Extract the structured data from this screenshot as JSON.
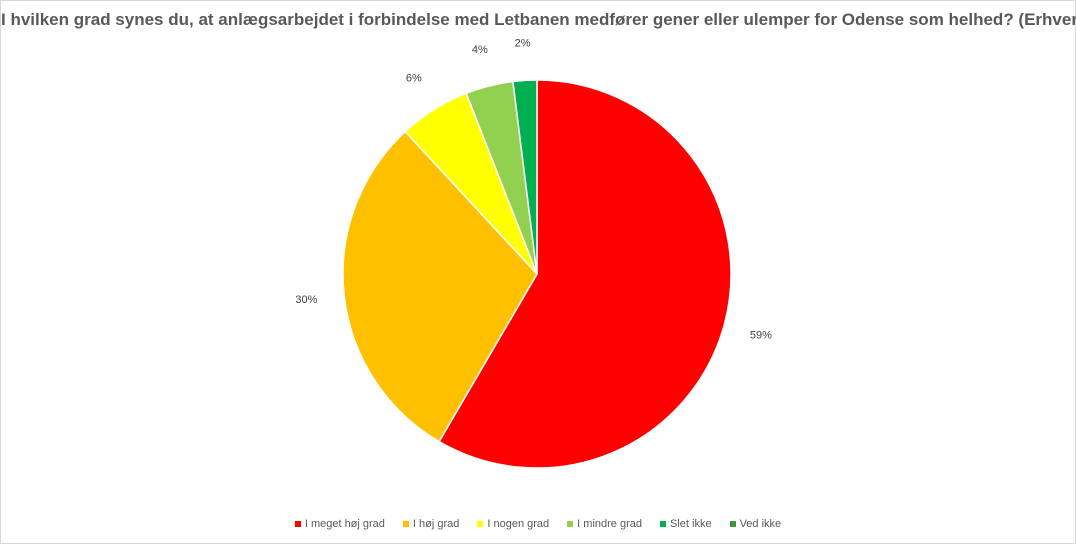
{
  "chart_data": {
    "type": "pie",
    "title": "I hvilken grad synes du, at anlægsarbejdet i forbindelse med Letbanen medfører gener eller ulemper for Odense som helhed? (Erhverv)",
    "slices": [
      {
        "label": "I meget høj grad",
        "value": 59,
        "display": "59%",
        "color": "#ff0000"
      },
      {
        "label": "I høj grad",
        "value": 30,
        "display": "30%",
        "color": "#ffc000"
      },
      {
        "label": "I nogen grad",
        "value": 6,
        "display": "6%",
        "color": "#ffff00"
      },
      {
        "label": "I mindre grad",
        "value": 4,
        "display": "4%",
        "color": "#92d050"
      },
      {
        "label": "Slet ikke",
        "value": 2,
        "display": "2%",
        "color": "#00b050"
      },
      {
        "label": "Ved ikke",
        "value": 0,
        "display": "",
        "color": "#3a9a3a"
      }
    ],
    "legend_position": "bottom"
  }
}
